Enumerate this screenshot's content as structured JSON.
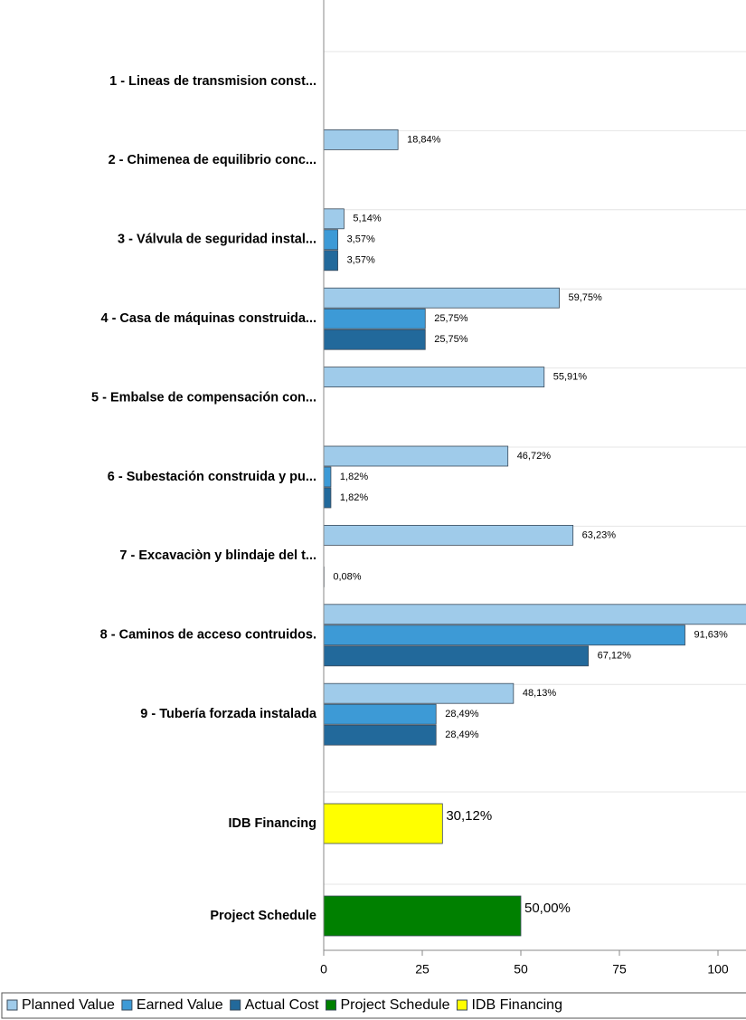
{
  "chart_data": {
    "type": "hbar",
    "categories": [
      "1 - Lineas de transmision const...",
      "2 - Chimenea de equilibrio conc...",
      "3 - Válvula de seguridad instal...",
      "4 - Casa de máquinas construida...",
      "5 - Embalse de compensación con...",
      "6 - Subestación construida y pu...",
      "7 - Excavaciòn y blindaje del t...",
      "8 - Caminos de acceso contruidos.",
      "9 - Tubería forzada instalada",
      "IDB Financing",
      "Project Schedule"
    ],
    "series": [
      {
        "name": "Planned Value",
        "color": "#9fcbea",
        "values": [
          null,
          18.84,
          5.14,
          59.75,
          55.91,
          46.72,
          63.23,
          108,
          48.13,
          null,
          null
        ],
        "value_labels": [
          null,
          "18,84%",
          "5,14%",
          "59,75%",
          "55,91%",
          "46,72%",
          "63,23%",
          null,
          "48,13%",
          null,
          null
        ]
      },
      {
        "name": "Earned Value",
        "color": "#3d9ad6",
        "values": [
          null,
          null,
          3.57,
          25.75,
          null,
          1.82,
          null,
          91.63,
          28.49,
          null,
          null
        ],
        "value_labels": [
          null,
          null,
          "3,57%",
          "25,75%",
          null,
          "1,82%",
          null,
          "91,63%",
          "28,49%",
          null,
          null
        ]
      },
      {
        "name": "Actual Cost",
        "color": "#22699b",
        "values": [
          null,
          null,
          3.57,
          25.75,
          null,
          1.82,
          0.08,
          67.12,
          28.49,
          null,
          null
        ],
        "value_labels": [
          null,
          null,
          "3,57%",
          "25,75%",
          null,
          "1,82%",
          "0,08%",
          "67,12%",
          "28,49%",
          null,
          null
        ]
      },
      {
        "name": "Project Schedule",
        "color": "#008000",
        "values": [
          null,
          null,
          null,
          null,
          null,
          null,
          null,
          null,
          null,
          null,
          50.0
        ],
        "value_labels": [
          null,
          null,
          null,
          null,
          null,
          null,
          null,
          null,
          null,
          null,
          "50,00%"
        ]
      },
      {
        "name": "IDB Financing",
        "color": "#ffff00",
        "values": [
          null,
          null,
          null,
          null,
          null,
          null,
          null,
          null,
          null,
          30.12,
          null
        ],
        "value_labels": [
          null,
          null,
          null,
          null,
          null,
          null,
          null,
          null,
          null,
          "30,12%",
          null
        ]
      }
    ],
    "xlim": [
      0,
      107
    ],
    "xticks": [
      0,
      25,
      50,
      75,
      100
    ]
  }
}
